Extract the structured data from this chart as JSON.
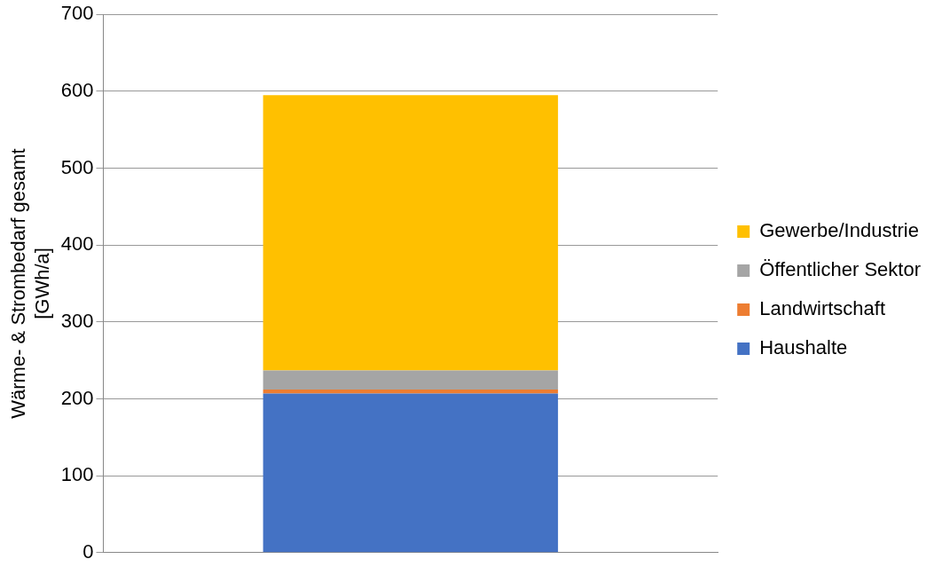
{
  "chart_data": {
    "type": "bar",
    "stacked": true,
    "ylabel": "Wärme- & Strombedarf gesamt\n[GWh/a]",
    "categories": [
      null
    ],
    "series": [
      {
        "name": "Haushalte",
        "color": "#4472c4",
        "values": [
          207
        ]
      },
      {
        "name": "Landwirtschaft",
        "color": "#ed7d31",
        "values": [
          5
        ]
      },
      {
        "name": "Öffentlicher Sektor",
        "color": "#a5a5a5",
        "values": [
          25
        ]
      },
      {
        "name": "Gewerbe/Industrie",
        "color": "#ffc000",
        "values": [
          358
        ]
      }
    ],
    "ylim": [
      0,
      700
    ],
    "yticks": [
      0,
      100,
      200,
      300,
      400,
      500,
      600,
      700
    ],
    "grid": "y",
    "legend": "right",
    "tick_labels": "y"
  }
}
